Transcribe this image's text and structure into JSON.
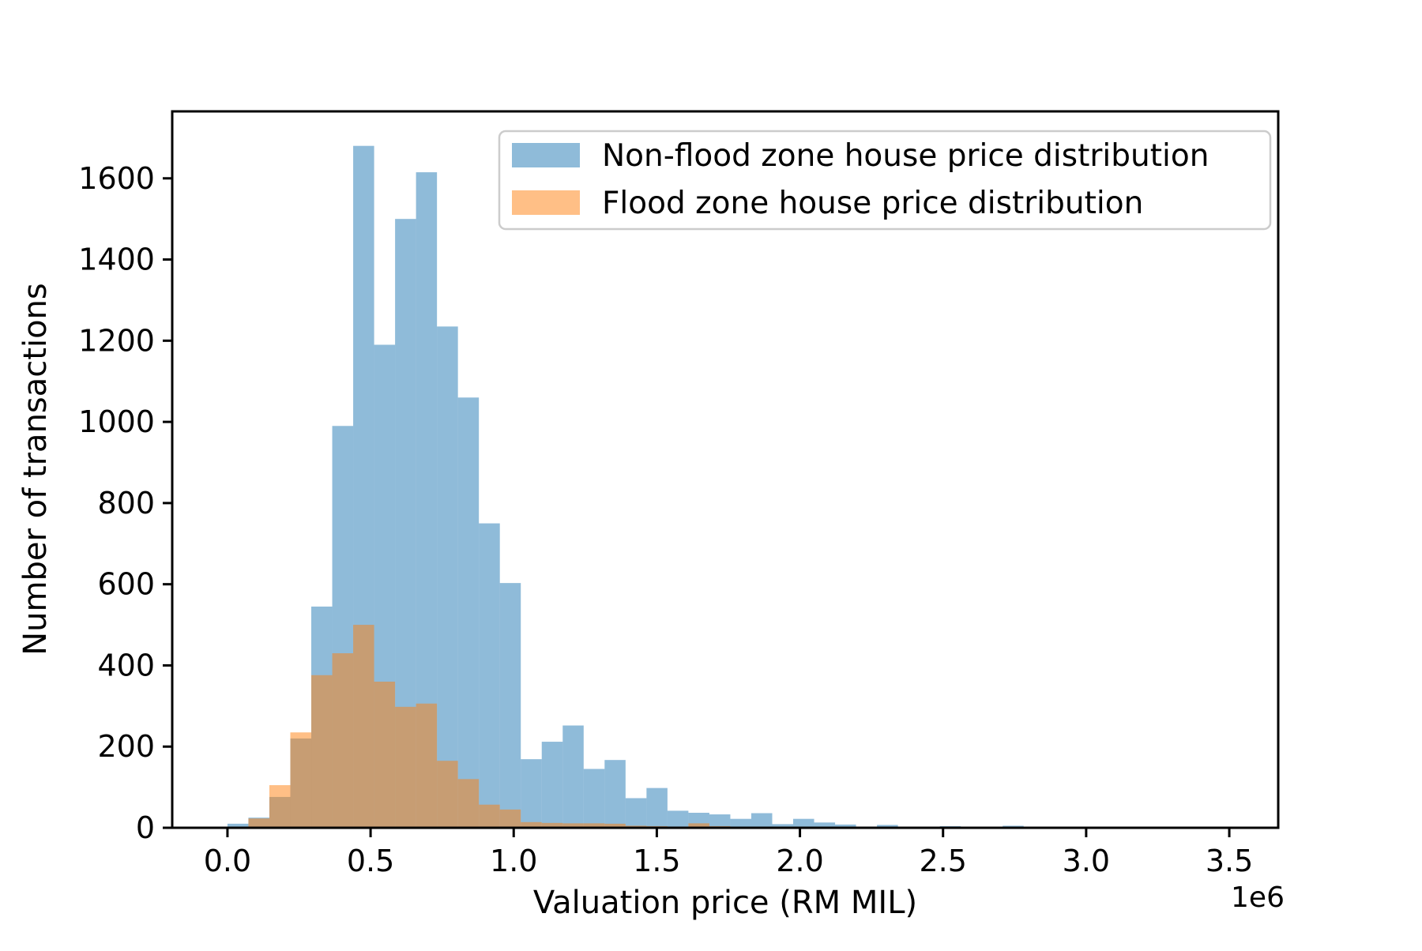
{
  "figure": {
    "xlabel": "Valuation price (RM MIL)",
    "ylabel": "Number of transactions",
    "x_offset_label": "1e6",
    "background_color": "#ffffff",
    "spine_color": "#000000"
  },
  "legend": {
    "items": [
      {
        "label": "Non-flood zone house price distribution",
        "color": "#8fbbd9"
      },
      {
        "label": "Flood zone house price distribution",
        "color": "#ffbf86"
      }
    ],
    "border_color": "#cccccc",
    "background_color": "#ffffff"
  },
  "chart_data": {
    "type": "histogram",
    "title": "",
    "xlabel": "Valuation price (RM MIL)",
    "ylabel": "Number of transactions",
    "x_unit_multiplier": "1e6",
    "bin_start": 0,
    "bin_width": 73200,
    "xlim": [
      -193000,
      3671000
    ],
    "ylim": [
      0,
      1765
    ],
    "grid": false,
    "legend_position": "upper right inside",
    "x_ticks": {
      "values": [
        0,
        500000,
        1000000,
        1500000,
        2000000,
        2500000,
        3000000,
        3500000
      ],
      "labels": [
        "0.0",
        "0.5",
        "1.0",
        "1.5",
        "2.0",
        "2.5",
        "3.0",
        "3.5"
      ]
    },
    "y_ticks": {
      "values": [
        0,
        200,
        400,
        600,
        800,
        1000,
        1200,
        1400,
        1600
      ],
      "labels": [
        "0",
        "200",
        "400",
        "600",
        "800",
        "1000",
        "1200",
        "1400",
        "1600"
      ]
    },
    "series": [
      {
        "name": "Non-flood zone house price distribution",
        "fill": "rgba(31,119,180,0.5)",
        "solid_equivalent": "#8fbbd9",
        "counts": [
          10,
          25,
          76,
          220,
          545,
          990,
          1680,
          1190,
          1500,
          1615,
          1235,
          1060,
          750,
          603,
          169,
          212,
          252,
          145,
          167,
          73,
          98,
          42,
          37,
          33,
          22,
          36,
          9,
          22,
          13,
          8,
          3,
          7,
          0,
          0,
          4,
          0,
          0,
          5,
          0,
          0,
          0,
          0,
          0,
          0,
          0,
          0,
          0,
          0,
          0,
          1
        ]
      },
      {
        "name": "Flood zone house price distribution",
        "fill": "rgba(255,127,14,0.5)",
        "solid_equivalent": "#ffbf86",
        "counts": [
          0,
          23,
          105,
          235,
          376,
          430,
          500,
          360,
          298,
          306,
          165,
          120,
          57,
          45,
          14,
          12,
          11,
          11,
          10,
          5,
          4,
          3,
          11,
          4,
          0,
          0,
          0,
          0,
          0,
          0,
          0,
          0,
          0,
          0,
          0,
          0,
          0,
          0,
          0,
          0,
          0,
          0,
          0,
          0,
          0,
          0,
          0,
          0,
          0,
          0
        ]
      }
    ]
  }
}
